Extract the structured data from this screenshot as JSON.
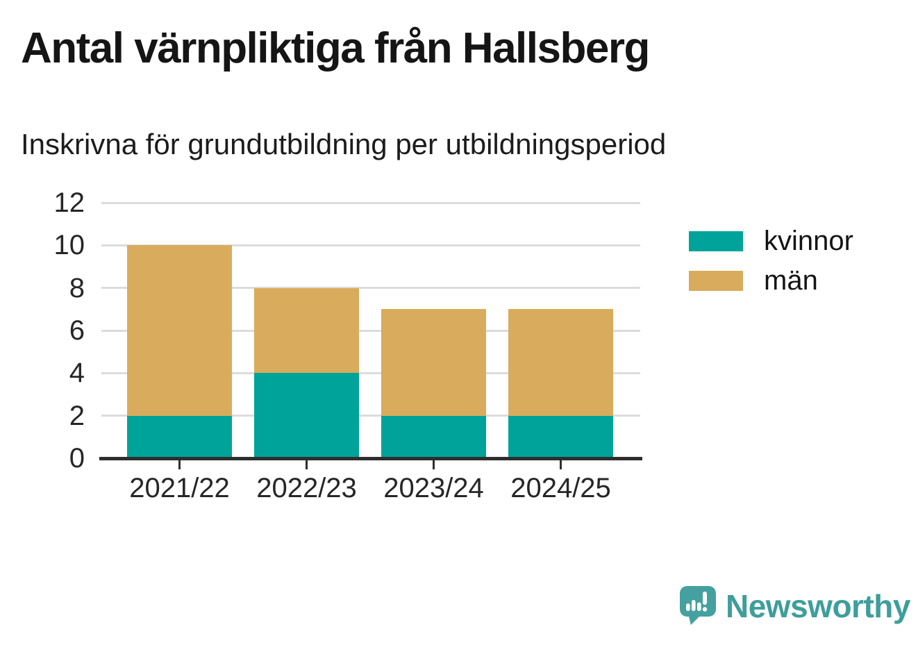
{
  "chart_data": {
    "type": "bar",
    "stacked": true,
    "title": "Antal värnpliktiga från Hallsberg",
    "subtitle": "Inskrivna för grundutbildning per utbildningsperiod",
    "categories": [
      "2021/22",
      "2022/23",
      "2023/24",
      "2024/25"
    ],
    "series": [
      {
        "name": "kvinnor",
        "color": "#00a399",
        "values": [
          2,
          4,
          2,
          2
        ]
      },
      {
        "name": "män",
        "color": "#d8ac5c",
        "values": [
          8,
          4,
          5,
          5
        ]
      }
    ],
    "totals": [
      10,
      8,
      7,
      7
    ],
    "xlabel": "",
    "ylabel": "",
    "ylim": [
      0,
      12
    ],
    "yticks": [
      0,
      2,
      4,
      6,
      8,
      10,
      12
    ],
    "grid": true,
    "legend_position": "right",
    "gridline_color": "#dcdcdc",
    "axis_color": "#2e2e2e",
    "tick_label_color": "#262626"
  },
  "branding": {
    "logo_text": "Newsworthy",
    "logo_text_color": "#3e9e9b",
    "icon_color": "#45a19f"
  }
}
